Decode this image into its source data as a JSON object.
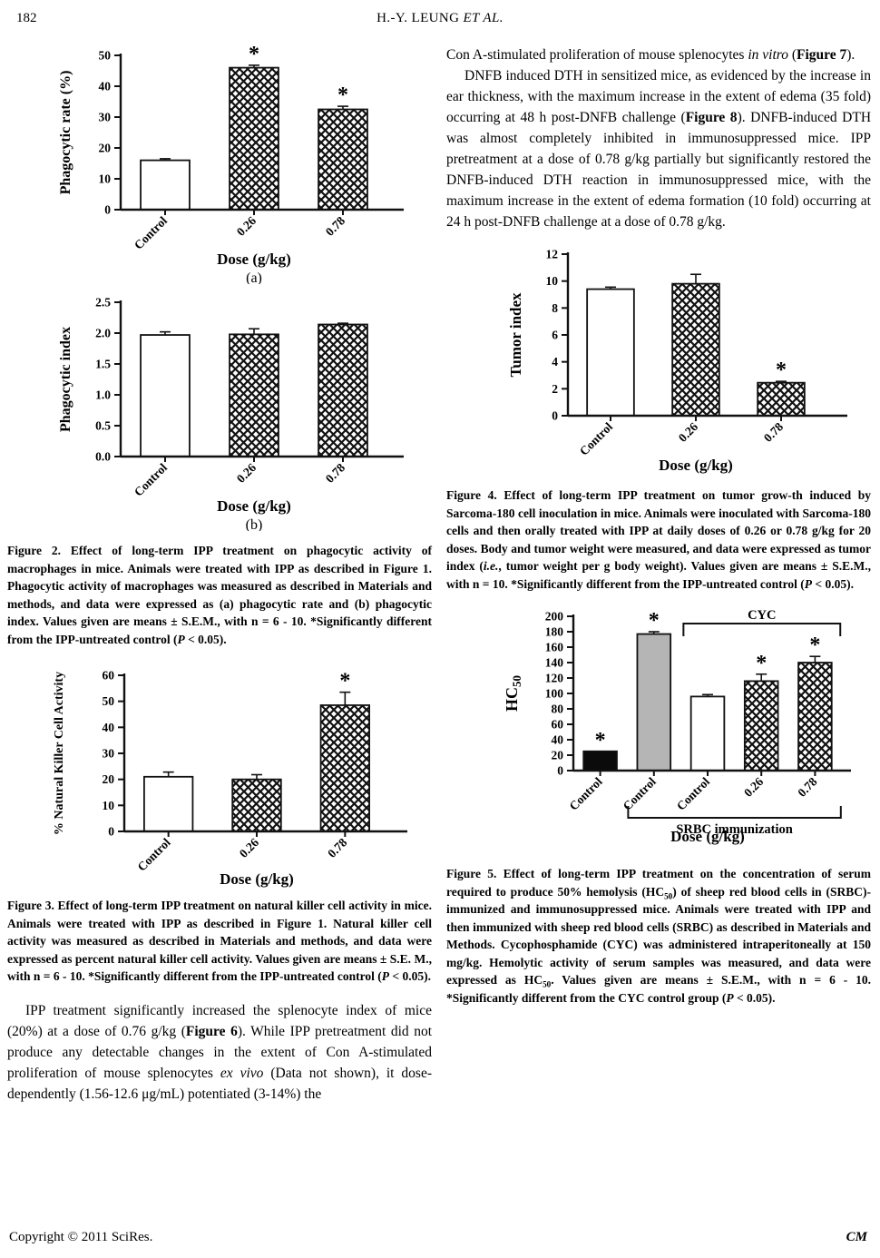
{
  "page": {
    "number": "182",
    "running_head": [
      {
        "t": "H.-Y. LEUNG  "
      },
      {
        "t": "ET  AL.",
        "i": true
      }
    ],
    "footer_left": "Copyright © 2011 SciRes.",
    "footer_right": "CM"
  },
  "colors": {
    "background": "#ffffff",
    "ink": "#111111",
    "bar_white": "#ffffff",
    "bar_gray": "#b5b5b5",
    "bar_black": "#0b0b0b"
  },
  "body": {
    "left_paragraph": [
      {
        "t": "IPP treatment significantly increased the splenocyte index of mice (20%) at a dose of 0.76 g/kg ("
      },
      {
        "t": "Figure 6",
        "b": true
      },
      {
        "t": "). While IPP pretreatment did not produce any detectable changes in the extent of Con A-stimulated proliferation of mouse splenocytes "
      },
      {
        "t": "ex vivo",
        "i": true
      },
      {
        "t": " (Data not shown), it dose-dependently (1.56-12.6 μg/mL) potentiated (3-14%) the"
      }
    ],
    "right_paragraph_1": [
      {
        "t": "Con A-stimulated proliferation of mouse splenocytes "
      },
      {
        "t": "in vitro",
        "i": true
      },
      {
        "t": " ("
      },
      {
        "t": "Figure 7",
        "b": true
      },
      {
        "t": ")."
      }
    ],
    "right_paragraph_2": [
      {
        "t": "DNFB induced DTH in sensitized mice, as evidenced by the increase in ear thickness, with the maximum increase in the extent of edema (35 fold) occurring at 48 h post-DNFB challenge ("
      },
      {
        "t": "Figure 8",
        "b": true
      },
      {
        "t": "). DNFB-induced DTH was almost completely inhibited in immunosuppressed mice. IPP pretreatment at a dose of 0.78 g/kg partially but significantly restored the DNFB-induced DTH reaction in immunosuppressed mice, with the maximum increase in the extent of edema formation (10 fold) occurring at 24 h post-DNFB challenge at a dose of 0.78 g/kg."
      }
    ]
  },
  "captions": {
    "figure2": [
      {
        "t": "Figure 2. Effect of long-term IPP treatment on phagocytic activity of macrophages in mice. Animals were treated with IPP as described in Figure 1. Phagocytic activity of macrophages was measured as described in Materials and methods, and data were expressed as (a) phagocytic rate and (b) phagocytic index. Values given are means ± S.E.M., with n = 6 - 10. *Significantly different from the IPP-untreated control (",
        "b": true
      },
      {
        "t": "P",
        "b": true,
        "i": true
      },
      {
        "t": " < 0.05).",
        "b": true
      }
    ],
    "figure3": [
      {
        "t": "Figure 3. Effect of long-term IPP treatment on natural killer cell activity in mice. Animals were treated with IPP as described in Figure 1. Natural killer cell activity was measured as described in Materials and methods, and data were expressed as percent natural killer cell activity. Values given are means ± S.E. M., with n = 6 - 10. *Significantly different from the IPP-untreated control (",
        "b": true
      },
      {
        "t": "P",
        "b": true,
        "i": true
      },
      {
        "t": " < 0.05).",
        "b": true
      }
    ],
    "figure4": [
      {
        "t": "Figure 4. Effect of long-term IPP treatment on tumor grow-th induced by Sarcoma-180 cell inoculation in mice. Animals were inoculated with Sarcoma-180 cells and then orally treated with IPP at daily doses of 0.26 or 0.78 g/kg for 20 doses. Body and tumor weight were measured, and data were expressed as tumor index (",
        "b": true
      },
      {
        "t": "i.e.",
        "b": true,
        "i": true
      },
      {
        "t": ", tumor weight per g body weight). Values given are means ± S.E.M., with n = 10. *Significantly different from the IPP-untreated control (",
        "b": true
      },
      {
        "t": "P",
        "b": true,
        "i": true
      },
      {
        "t": " < 0.05).",
        "b": true
      }
    ],
    "figure5": [
      {
        "t": "Figure 5. Effect of long-term IPP treatment on the concentration of serum required to produce 50% hemolysis (HC",
        "b": true
      },
      {
        "t": "50",
        "b": true,
        "sub": true
      },
      {
        "t": ") of sheep red blood cells in (SRBC)-immunized and immunosuppressed mice. Animals were treated with IPP and then immunized with sheep red blood cells (SRBC) as described in Materials and Methods. Cycophosphamide (CYC) was administered intraperitoneally at 150 mg/kg. Hemolytic activity of serum samples was measured, and data were expressed as HC",
        "b": true
      },
      {
        "t": "50",
        "b": true,
        "sub": true
      },
      {
        "t": ". Values given are means ± S.E.M., with n = 6 - 10. *Significantly different from the CYC control group (",
        "b": true
      },
      {
        "t": "P",
        "b": true,
        "i": true
      },
      {
        "t": " < 0.05).",
        "b": true
      }
    ]
  },
  "chart_data": [
    {
      "id": "fig2a",
      "type": "bar",
      "ylabel": "Phagocytic rate (%)",
      "xlabel": "Dose (g/kg)",
      "sublabel": "(a)",
      "ylim": [
        0,
        50
      ],
      "ytick_values": [
        0,
        10,
        20,
        30,
        40,
        50
      ],
      "ytick_labels": [
        "0",
        "10",
        "20",
        "30",
        "40",
        "50"
      ],
      "categories": [
        "Control",
        "0.26",
        "0.78"
      ],
      "values": [
        16,
        46,
        32.5
      ],
      "errors": [
        0.5,
        0.8,
        1
      ],
      "bar_styles": [
        "white",
        "hatch",
        "hatch"
      ],
      "asterisks": [
        false,
        true,
        true
      ],
      "grid": false,
      "legend": "none"
    },
    {
      "id": "fig2b",
      "type": "bar",
      "ylabel": "Phagocytic index",
      "xlabel": "Dose (g/kg)",
      "sublabel": "(b)",
      "ylim": [
        0,
        2.5
      ],
      "ytick_values": [
        0,
        0.5,
        1.0,
        1.5,
        2.0,
        2.5
      ],
      "ytick_labels": [
        "0.0",
        "0.5",
        "1.0",
        "1.5",
        "2.0",
        "2.5"
      ],
      "categories": [
        "Control",
        "0.26",
        "0.78"
      ],
      "values": [
        1.97,
        1.98,
        2.14
      ],
      "errors": [
        0.05,
        0.09,
        0.02
      ],
      "bar_styles": [
        "white",
        "hatch",
        "hatch"
      ],
      "asterisks": [
        false,
        false,
        false
      ],
      "grid": false,
      "legend": "none"
    },
    {
      "id": "fig3",
      "type": "bar",
      "ylabel": "% Natural Killer Cell Activity",
      "xlabel": "Dose (g/kg)",
      "sublabel": "",
      "ylim": [
        0,
        60
      ],
      "ytick_values": [
        0,
        10,
        20,
        30,
        40,
        50,
        60
      ],
      "ytick_labels": [
        "0",
        "10",
        "20",
        "30",
        "40",
        "50",
        "60"
      ],
      "categories": [
        "Control",
        "0.26",
        "0.78"
      ],
      "values": [
        21,
        20,
        48.5
      ],
      "errors": [
        1.8,
        1.8,
        5
      ],
      "bar_styles": [
        "white",
        "hatch",
        "hatch"
      ],
      "asterisks": [
        false,
        false,
        true
      ],
      "grid": false,
      "legend": "none"
    },
    {
      "id": "fig4",
      "type": "bar",
      "ylabel": "Tumor index",
      "xlabel": "Dose (g/kg)",
      "sublabel": "",
      "ylim": [
        0,
        12
      ],
      "ytick_values": [
        0,
        2,
        4,
        6,
        8,
        10,
        12
      ],
      "ytick_labels": [
        "0",
        "2",
        "4",
        "6",
        "8",
        "10",
        "12"
      ],
      "categories": [
        "Control",
        "0.26",
        "0.78"
      ],
      "values": [
        9.4,
        9.8,
        2.45
      ],
      "errors": [
        0.15,
        0.7,
        0.1
      ],
      "bar_styles": [
        "white",
        "hatch",
        "hatch"
      ],
      "asterisks": [
        false,
        false,
        true
      ],
      "grid": false,
      "legend": "none"
    },
    {
      "id": "fig5",
      "type": "bar",
      "ylabel": {
        "main": "HC",
        "sub": "50"
      },
      "xlabel": "Dose (g/kg)",
      "sublabel": "",
      "ylim": [
        0,
        200
      ],
      "ytick_values": [
        0,
        20,
        40,
        60,
        80,
        100,
        120,
        140,
        160,
        180,
        200
      ],
      "ytick_labels": [
        "0",
        "20",
        "40",
        "60",
        "80",
        "100",
        "120",
        "140",
        "160",
        "180",
        "200"
      ],
      "categories": [
        "Control",
        "Control",
        "Control",
        "0.26",
        "0.78"
      ],
      "values": [
        25,
        177,
        96,
        116,
        140
      ],
      "errors": [
        0,
        3,
        2.5,
        9,
        8
      ],
      "bar_styles": [
        "black",
        "gray",
        "white",
        "hatch",
        "hatch"
      ],
      "asterisks": [
        true,
        true,
        false,
        true,
        true
      ],
      "brackets": [
        {
          "label": "CYC",
          "position": "top",
          "from": 2,
          "to": 4
        },
        {
          "label": "SRBC immunization",
          "position": "bottom",
          "from": 1,
          "to": 4
        }
      ],
      "grid": false,
      "legend": "none"
    }
  ]
}
